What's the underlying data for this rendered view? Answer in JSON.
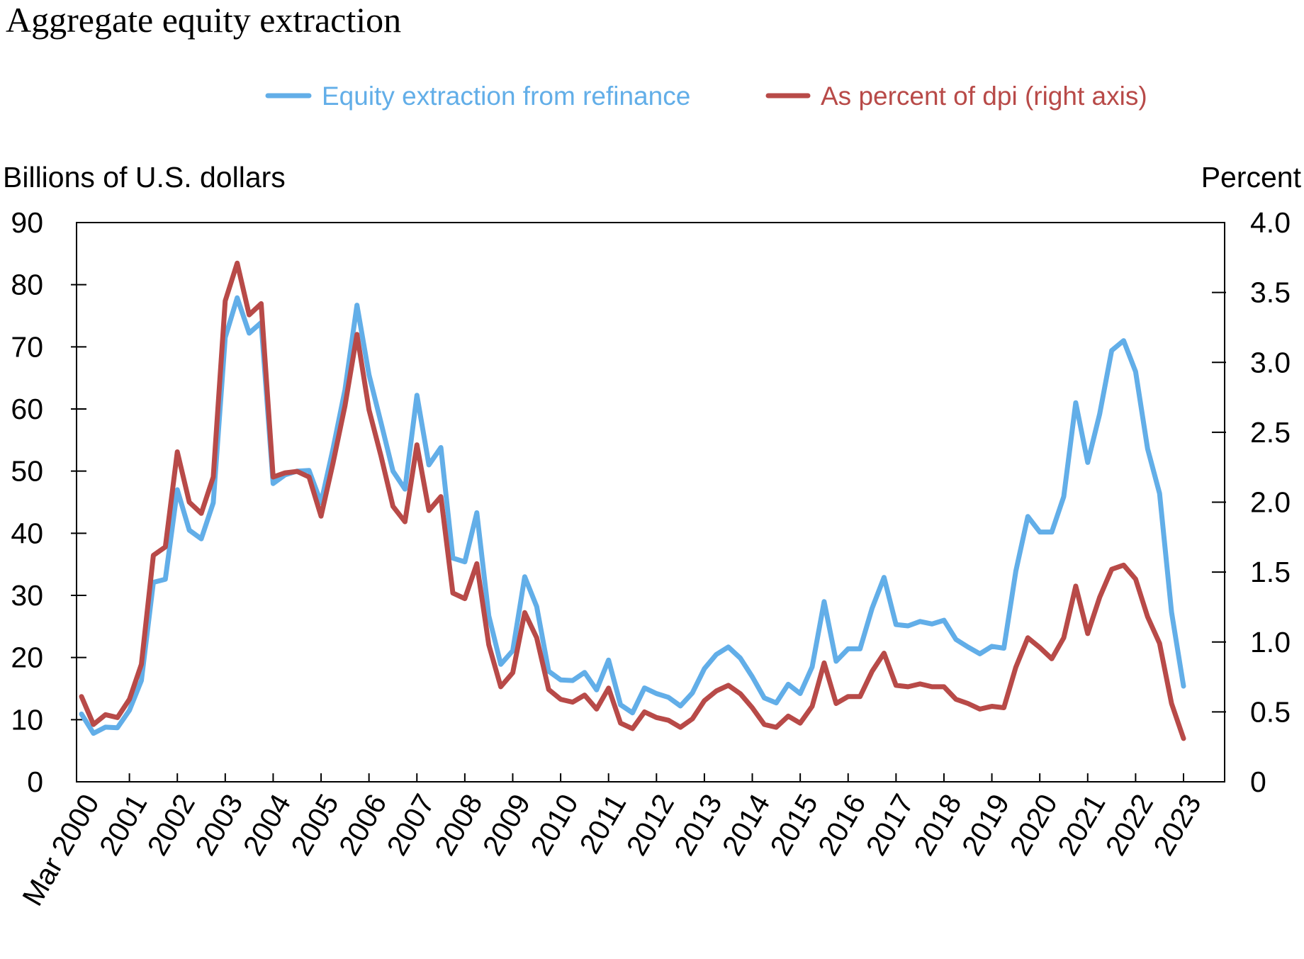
{
  "chart_data": {
    "type": "line",
    "title": "Aggregate equity extraction",
    "ylabel_left": "Billions of U.S. dollars",
    "ylabel_right": "Percent",
    "ylim_left": [
      0,
      90
    ],
    "ylim_right": [
      0,
      4.0
    ],
    "yticks_left": [
      "0",
      "10",
      "20",
      "30",
      "40",
      "50",
      "60",
      "70",
      "80",
      "90"
    ],
    "yticks_right": [
      "0",
      "0.5",
      "1.0",
      "1.5",
      "2.0",
      "2.5",
      "3.0",
      "3.5",
      "4.0"
    ],
    "xtick_labels": [
      "Mar 2000",
      "2001",
      "2002",
      "2003",
      "2004",
      "2005",
      "2006",
      "2007",
      "2008",
      "2009",
      "2010",
      "2011",
      "2012",
      "2013",
      "2014",
      "2015",
      "2016",
      "2017",
      "2018",
      "2019",
      "2020",
      "2021",
      "2022",
      "2023"
    ],
    "grid": false,
    "legend_position": "top",
    "x": [
      "2000Q1",
      "2000Q2",
      "2000Q3",
      "2000Q4",
      "2001Q1",
      "2001Q2",
      "2001Q3",
      "2001Q4",
      "2002Q1",
      "2002Q2",
      "2002Q3",
      "2002Q4",
      "2003Q1",
      "2003Q2",
      "2003Q3",
      "2003Q4",
      "2004Q1",
      "2004Q2",
      "2004Q3",
      "2004Q4",
      "2005Q1",
      "2005Q2",
      "2005Q3",
      "2005Q4",
      "2006Q1",
      "2006Q2",
      "2006Q3",
      "2006Q4",
      "2007Q1",
      "2007Q2",
      "2007Q3",
      "2007Q4",
      "2008Q1",
      "2008Q2",
      "2008Q3",
      "2008Q4",
      "2009Q1",
      "2009Q2",
      "2009Q3",
      "2009Q4",
      "2010Q1",
      "2010Q2",
      "2010Q3",
      "2010Q4",
      "2011Q1",
      "2011Q2",
      "2011Q3",
      "2011Q4",
      "2012Q1",
      "2012Q2",
      "2012Q3",
      "2012Q4",
      "2013Q1",
      "2013Q2",
      "2013Q3",
      "2013Q4",
      "2014Q1",
      "2014Q2",
      "2014Q3",
      "2014Q4",
      "2015Q1",
      "2015Q2",
      "2015Q3",
      "2015Q4",
      "2016Q1",
      "2016Q2",
      "2016Q3",
      "2016Q4",
      "2017Q1",
      "2017Q2",
      "2017Q3",
      "2017Q4",
      "2018Q1",
      "2018Q2",
      "2018Q3",
      "2018Q4",
      "2019Q1",
      "2019Q2",
      "2019Q3",
      "2019Q4",
      "2020Q1",
      "2020Q2",
      "2020Q3",
      "2020Q4",
      "2021Q1",
      "2021Q2",
      "2021Q3",
      "2021Q4",
      "2022Q1",
      "2022Q2",
      "2022Q3",
      "2022Q4",
      "2023Q1"
    ],
    "series": [
      {
        "name": "Equity extraction from refinance",
        "axis": "left",
        "color": "#62AEE8",
        "values": [
          10.9,
          7.8,
          8.8,
          8.7,
          11.5,
          16.3,
          32.1,
          32.6,
          47.0,
          40.5,
          39.1,
          44.9,
          71.5,
          77.9,
          72.2,
          73.9,
          48.0,
          49.4,
          50.0,
          50.1,
          44.9,
          53.6,
          63.1,
          76.7,
          65.5,
          57.8,
          50.0,
          47.1,
          62.2,
          51.0,
          53.8,
          36.0,
          35.4,
          43.3,
          26.7,
          18.9,
          21.1,
          33.0,
          28.2,
          17.8,
          16.4,
          16.3,
          17.6,
          14.8,
          19.6,
          12.4,
          11.1,
          15.1,
          14.2,
          13.6,
          12.2,
          14.3,
          18.2,
          20.5,
          21.7,
          19.9,
          16.9,
          13.5,
          12.7,
          15.7,
          14.2,
          18.5,
          29.0,
          19.4,
          21.4,
          21.4,
          27.9,
          32.9,
          25.3,
          25.1,
          25.8,
          25.4,
          26.0,
          22.9,
          21.7,
          20.6,
          21.8,
          21.5,
          33.9,
          42.7,
          40.2,
          40.2,
          45.9,
          61.0,
          51.4,
          59.2,
          69.4,
          71.0,
          66.0,
          53.6,
          46.4,
          27.3,
          15.4
        ]
      },
      {
        "name": "As percent of dpi (right axis)",
        "axis": "right",
        "color": "#B84A48",
        "values": [
          0.61,
          0.41,
          0.48,
          0.46,
          0.59,
          0.84,
          1.62,
          1.68,
          2.36,
          2.0,
          1.92,
          2.18,
          3.44,
          3.71,
          3.34,
          3.42,
          2.18,
          2.21,
          2.22,
          2.18,
          1.9,
          2.28,
          2.69,
          3.2,
          2.66,
          2.33,
          1.97,
          1.86,
          2.41,
          1.94,
          2.04,
          1.35,
          1.31,
          1.56,
          0.98,
          0.68,
          0.78,
          1.21,
          1.03,
          0.66,
          0.59,
          0.57,
          0.62,
          0.52,
          0.67,
          0.42,
          0.38,
          0.5,
          0.46,
          0.44,
          0.39,
          0.45,
          0.58,
          0.65,
          0.69,
          0.63,
          0.53,
          0.41,
          0.39,
          0.47,
          0.42,
          0.54,
          0.85,
          0.56,
          0.61,
          0.61,
          0.79,
          0.92,
          0.69,
          0.68,
          0.7,
          0.68,
          0.68,
          0.59,
          0.56,
          0.52,
          0.54,
          0.53,
          0.82,
          1.03,
          0.96,
          0.88,
          1.03,
          1.4,
          1.06,
          1.32,
          1.52,
          1.55,
          1.45,
          1.18,
          0.99,
          0.56,
          0.31
        ]
      }
    ]
  }
}
